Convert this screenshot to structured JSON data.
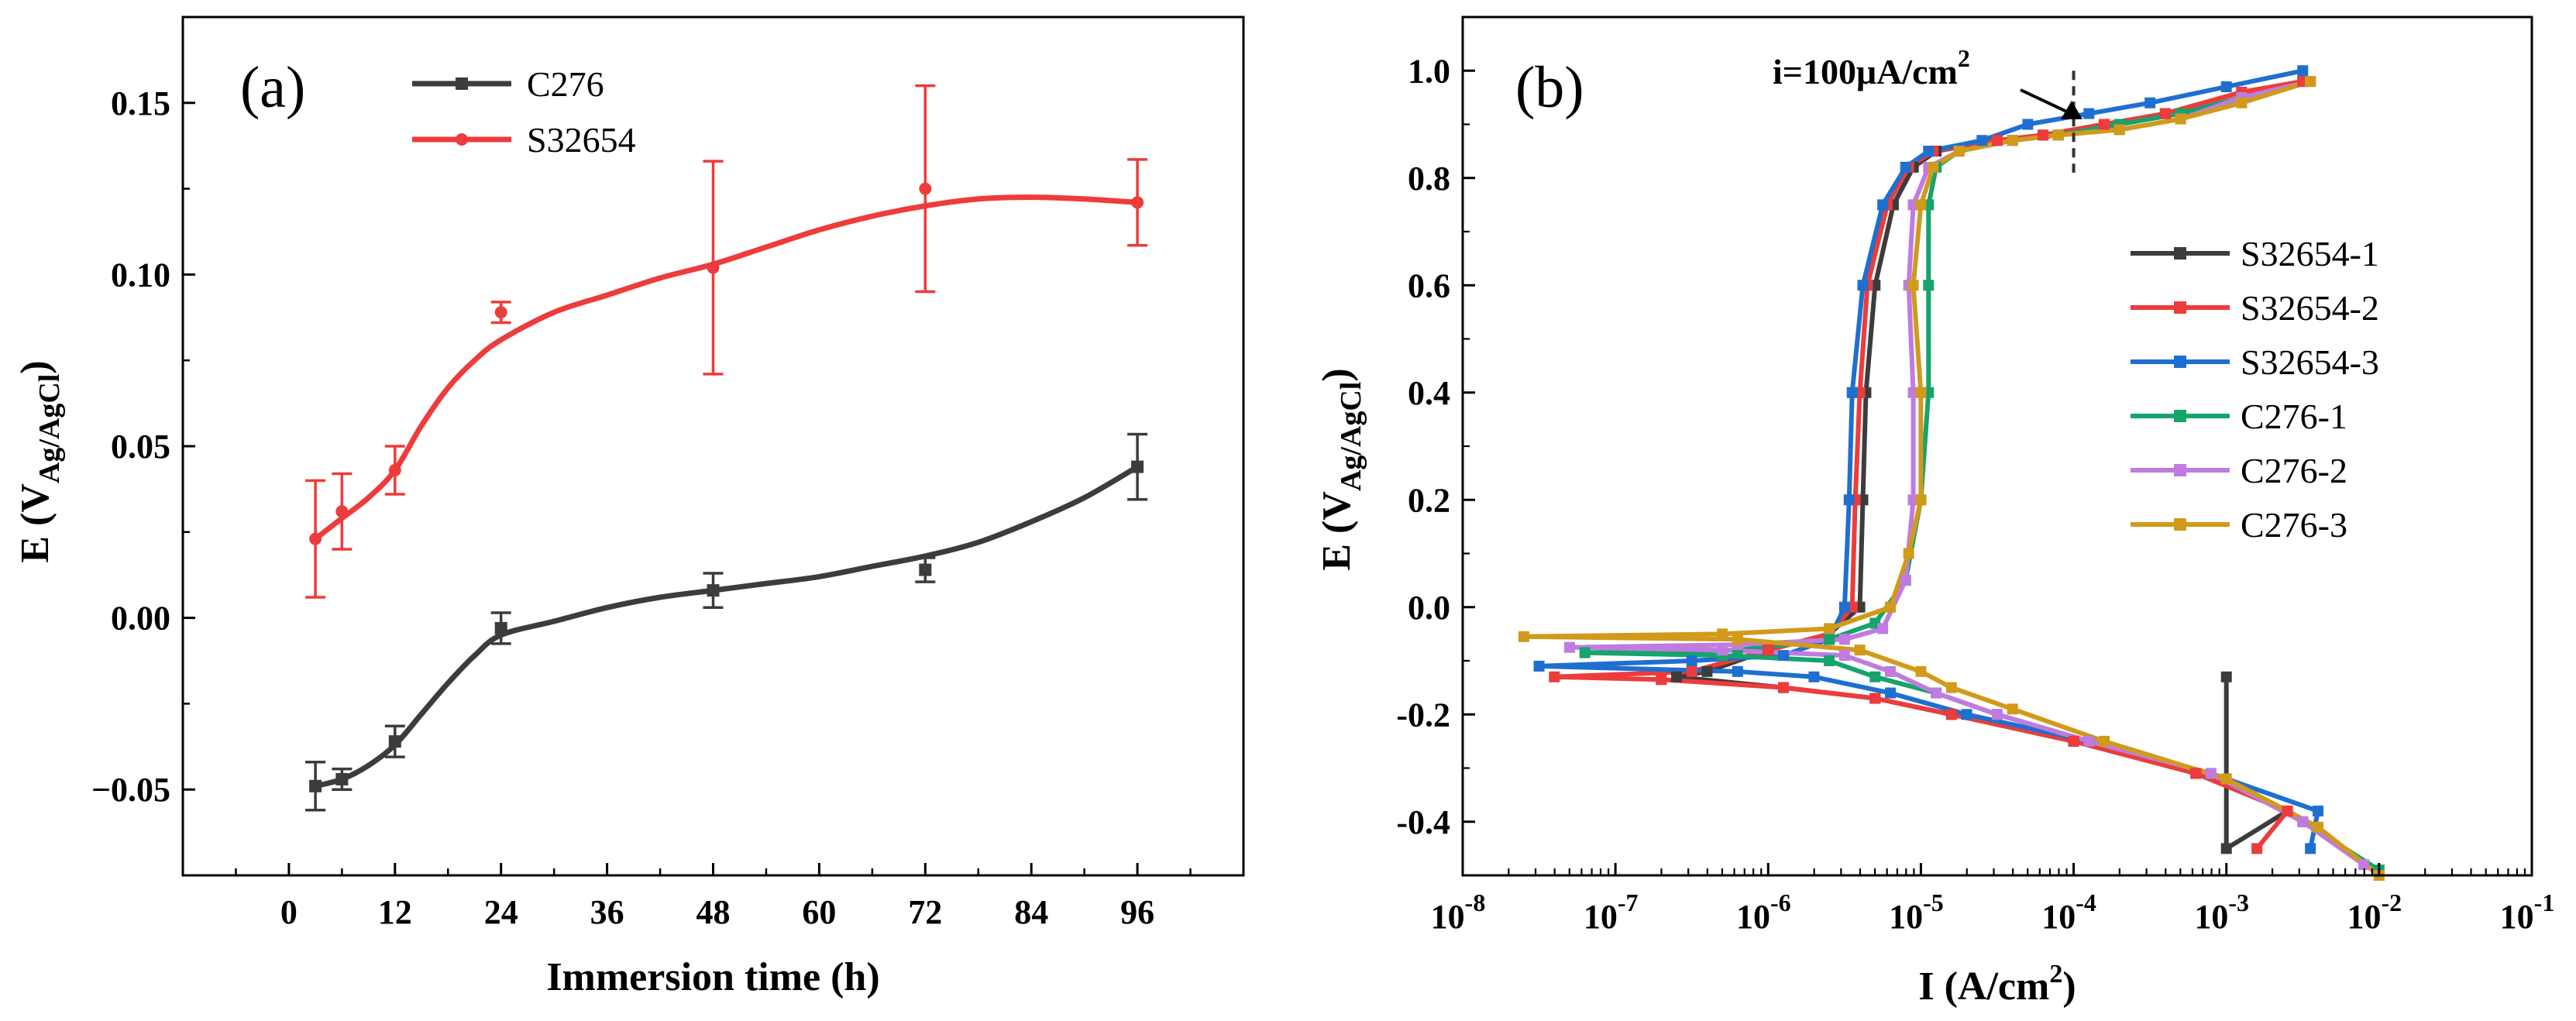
{
  "chart_data": [
    {
      "panel_label": "(a)",
      "type": "line",
      "xlabel": "Immersion time (h)",
      "ylabel": "E (V",
      "ylabel_sub": "Ag/AgCl",
      "ylabel_end": ")",
      "xlim": [
        -12,
        108
      ],
      "ylim": [
        -0.075,
        0.175
      ],
      "x_ticks": [
        0,
        12,
        24,
        36,
        48,
        60,
        72,
        84,
        96
      ],
      "x_tick_labels": [
        "0",
        "12",
        "24",
        "36",
        "48",
        "60",
        "72",
        "84",
        "96"
      ],
      "y_ticks": [
        -0.05,
        0.0,
        0.05,
        0.1,
        0.15
      ],
      "y_tick_labels": [
        "−0.05",
        "0.00",
        "0.05",
        "0.10",
        "0.15"
      ],
      "legend_position": "top-left",
      "series": [
        {
          "name": "C276",
          "color": "#3c3c3c",
          "marker": "square",
          "x": [
            3,
            6,
            12,
            24,
            48,
            72,
            96
          ],
          "y": [
            -0.049,
            -0.047,
            -0.036,
            -0.003,
            0.008,
            0.014,
            0.044
          ],
          "err": [
            0.007,
            0.003,
            0.0045,
            0.0045,
            0.005,
            0.0035,
            0.0095
          ],
          "fit_x": [
            3,
            6,
            9,
            12,
            15,
            18,
            21,
            24,
            30,
            36,
            42,
            48,
            54,
            60,
            66,
            72,
            78,
            84,
            90,
            96
          ],
          "fit_y": [
            -0.049,
            -0.047,
            -0.043,
            -0.037,
            -0.028,
            -0.019,
            -0.011,
            -0.005,
            -0.001,
            0.003,
            0.006,
            0.008,
            0.01,
            0.012,
            0.015,
            0.018,
            0.022,
            0.028,
            0.035,
            0.044
          ]
        },
        {
          "name": "S32654",
          "color": "#ee3b3b",
          "marker": "circle",
          "x": [
            3,
            6,
            12,
            24,
            48,
            72,
            96
          ],
          "y": [
            0.023,
            0.031,
            0.043,
            0.089,
            0.102,
            0.125,
            0.121
          ],
          "err": [
            0.017,
            0.011,
            0.007,
            0.003,
            0.031,
            0.03,
            0.0125
          ],
          "fit_x": [
            3,
            6,
            9,
            12,
            15,
            18,
            21,
            24,
            30,
            36,
            42,
            48,
            54,
            60,
            66,
            72,
            78,
            84,
            90,
            96
          ],
          "fit_y": [
            0.023,
            0.029,
            0.035,
            0.043,
            0.056,
            0.067,
            0.075,
            0.081,
            0.089,
            0.094,
            0.099,
            0.103,
            0.108,
            0.113,
            0.117,
            0.12,
            0.122,
            0.1225,
            0.122,
            0.121
          ]
        }
      ]
    },
    {
      "panel_label": "(b)",
      "type": "line",
      "xlabel": "I (A/cm",
      "xlabel_sup": "2",
      "xlabel_end": ")",
      "ylabel": "E (V",
      "ylabel_sub": "Ag/AgCl",
      "ylabel_end": ")",
      "x_scale": "log",
      "xlim": [
        1e-08,
        0.1
      ],
      "ylim": [
        -0.5,
        1.1
      ],
      "x_tick_exponents": [
        -8,
        -7,
        -6,
        -5,
        -4,
        -3,
        -2,
        -1
      ],
      "x_tick_base": "10",
      "y_ticks": [
        -0.4,
        -0.2,
        0.0,
        0.2,
        0.4,
        0.6,
        0.8,
        1.0
      ],
      "y_tick_labels": [
        "-0.4",
        "-0.2",
        "0.0",
        "0.2",
        "0.4",
        "0.6",
        "0.8",
        "1.0"
      ],
      "legend_position": "center-right",
      "annotation": {
        "text": "i=100μA/cm",
        "text_sup": "2",
        "x": 0.0001,
        "line_y": [
          0.81,
          1.0
        ]
      },
      "series": [
        {
          "name": "S32654-1",
          "color": "#3c3c3c",
          "marker": "square",
          "points": [
            [
              -3.0,
              -0.13
            ],
            [
              -3.0,
              -0.45
            ],
            [
              -2.6,
              -0.38
            ],
            [
              -3.2,
              -0.31
            ],
            [
              -4.0,
              -0.25
            ],
            [
              -4.8,
              -0.2
            ],
            [
              -5.3,
              -0.17
            ],
            [
              -5.9,
              -0.15
            ],
            [
              -6.6,
              -0.13
            ],
            [
              -6.4,
              -0.12
            ],
            [
              -6.0,
              -0.08
            ],
            [
              -5.6,
              -0.05
            ],
            [
              -5.4,
              0.0
            ],
            [
              -5.38,
              0.2
            ],
            [
              -5.36,
              0.4
            ],
            [
              -5.3,
              0.6
            ],
            [
              -5.18,
              0.75
            ],
            [
              -5.05,
              0.82
            ],
            [
              -4.9,
              0.85
            ],
            [
              -4.5,
              0.87
            ],
            [
              -4.2,
              0.88
            ],
            [
              -3.8,
              0.9
            ],
            [
              -3.4,
              0.92
            ],
            [
              -2.9,
              0.96
            ],
            [
              -2.5,
              0.98
            ]
          ]
        },
        {
          "name": "S32654-2",
          "color": "#ee3b3b",
          "marker": "square",
          "points": [
            [
              -2.8,
              -0.45
            ],
            [
              -2.6,
              -0.38
            ],
            [
              -3.2,
              -0.31
            ],
            [
              -4.0,
              -0.25
            ],
            [
              -4.8,
              -0.2
            ],
            [
              -5.3,
              -0.17
            ],
            [
              -5.9,
              -0.15
            ],
            [
              -6.7,
              -0.135
            ],
            [
              -7.4,
              -0.13
            ],
            [
              -6.5,
              -0.12
            ],
            [
              -6.0,
              -0.08
            ],
            [
              -5.6,
              -0.05
            ],
            [
              -5.45,
              0.0
            ],
            [
              -5.43,
              0.2
            ],
            [
              -5.4,
              0.4
            ],
            [
              -5.35,
              0.6
            ],
            [
              -5.22,
              0.75
            ],
            [
              -5.08,
              0.82
            ],
            [
              -4.92,
              0.85
            ],
            [
              -4.5,
              0.87
            ],
            [
              -4.2,
              0.88
            ],
            [
              -3.8,
              0.9
            ],
            [
              -3.4,
              0.92
            ],
            [
              -2.9,
              0.96
            ],
            [
              -2.5,
              0.98
            ]
          ]
        },
        {
          "name": "S32654-3",
          "color": "#1f6fd1",
          "marker": "square",
          "points": [
            [
              -2.45,
              -0.45
            ],
            [
              -2.4,
              -0.38
            ],
            [
              -3.1,
              -0.31
            ],
            [
              -3.9,
              -0.25
            ],
            [
              -4.7,
              -0.2
            ],
            [
              -5.2,
              -0.16
            ],
            [
              -5.7,
              -0.13
            ],
            [
              -6.2,
              -0.12
            ],
            [
              -7.5,
              -0.11
            ],
            [
              -6.5,
              -0.1
            ],
            [
              -5.9,
              -0.09
            ],
            [
              -5.6,
              -0.06
            ],
            [
              -5.5,
              0.0
            ],
            [
              -5.47,
              0.2
            ],
            [
              -5.45,
              0.4
            ],
            [
              -5.38,
              0.6
            ],
            [
              -5.25,
              0.75
            ],
            [
              -5.1,
              0.82
            ],
            [
              -4.95,
              0.85
            ],
            [
              -4.6,
              0.87
            ],
            [
              -4.3,
              0.9
            ],
            [
              -3.9,
              0.92
            ],
            [
              -3.5,
              0.94
            ],
            [
              -3.0,
              0.97
            ],
            [
              -2.5,
              1.0
            ]
          ]
        },
        {
          "name": "C276-1",
          "color": "#16a36c",
          "marker": "square",
          "points": [
            [
              -2.0,
              -0.49
            ],
            [
              -2.5,
              -0.4
            ],
            [
              -3.1,
              -0.31
            ],
            [
              -3.9,
              -0.25
            ],
            [
              -4.5,
              -0.2
            ],
            [
              -4.9,
              -0.16
            ],
            [
              -5.3,
              -0.13
            ],
            [
              -5.6,
              -0.1
            ],
            [
              -6.3,
              -0.09
            ],
            [
              -7.2,
              -0.085
            ],
            [
              -6.2,
              -0.08
            ],
            [
              -5.6,
              -0.06
            ],
            [
              -5.3,
              -0.03
            ],
            [
              -5.1,
              0.05
            ],
            [
              -5.0,
              0.2
            ],
            [
              -4.95,
              0.4
            ],
            [
              -4.95,
              0.6
            ],
            [
              -4.95,
              0.75
            ],
            [
              -4.9,
              0.82
            ],
            [
              -4.75,
              0.85
            ],
            [
              -4.4,
              0.87
            ],
            [
              -4.1,
              0.88
            ],
            [
              -3.7,
              0.9
            ],
            [
              -3.3,
              0.92
            ],
            [
              -2.9,
              0.95
            ],
            [
              -2.45,
              0.98
            ]
          ]
        },
        {
          "name": "C276-2",
          "color": "#c07be0",
          "marker": "square",
          "points": [
            [
              -2.1,
              -0.48
            ],
            [
              -2.5,
              -0.4
            ],
            [
              -3.1,
              -0.31
            ],
            [
              -3.9,
              -0.25
            ],
            [
              -4.5,
              -0.2
            ],
            [
              -4.9,
              -0.16
            ],
            [
              -5.2,
              -0.12
            ],
            [
              -5.5,
              -0.09
            ],
            [
              -6.3,
              -0.08
            ],
            [
              -7.3,
              -0.075
            ],
            [
              -6.2,
              -0.07
            ],
            [
              -5.5,
              -0.06
            ],
            [
              -5.25,
              -0.04
            ],
            [
              -5.1,
              0.05
            ],
            [
              -5.05,
              0.2
            ],
            [
              -5.05,
              0.4
            ],
            [
              -5.08,
              0.6
            ],
            [
              -5.05,
              0.75
            ],
            [
              -4.95,
              0.82
            ],
            [
              -4.75,
              0.85
            ],
            [
              -4.4,
              0.87
            ],
            [
              -4.1,
              0.88
            ],
            [
              -3.7,
              0.89
            ],
            [
              -3.3,
              0.91
            ],
            [
              -2.9,
              0.95
            ],
            [
              -2.45,
              0.98
            ]
          ]
        },
        {
          "name": "C276-3",
          "color": "#d19a1a",
          "marker": "square",
          "points": [
            [
              -2.0,
              -0.5
            ],
            [
              -2.4,
              -0.41
            ],
            [
              -3.0,
              -0.32
            ],
            [
              -3.8,
              -0.25
            ],
            [
              -4.4,
              -0.19
            ],
            [
              -4.8,
              -0.15
            ],
            [
              -5.0,
              -0.12
            ],
            [
              -5.4,
              -0.08
            ],
            [
              -6.2,
              -0.06
            ],
            [
              -7.6,
              -0.055
            ],
            [
              -6.3,
              -0.05
            ],
            [
              -5.6,
              -0.04
            ],
            [
              -5.2,
              0.0
            ],
            [
              -5.08,
              0.1
            ],
            [
              -5.0,
              0.2
            ],
            [
              -5.0,
              0.4
            ],
            [
              -5.05,
              0.6
            ],
            [
              -5.0,
              0.75
            ],
            [
              -4.92,
              0.82
            ],
            [
              -4.75,
              0.85
            ],
            [
              -4.4,
              0.87
            ],
            [
              -4.1,
              0.88
            ],
            [
              -3.7,
              0.89
            ],
            [
              -3.3,
              0.91
            ],
            [
              -2.9,
              0.94
            ],
            [
              -2.45,
              0.98
            ]
          ]
        }
      ]
    }
  ]
}
